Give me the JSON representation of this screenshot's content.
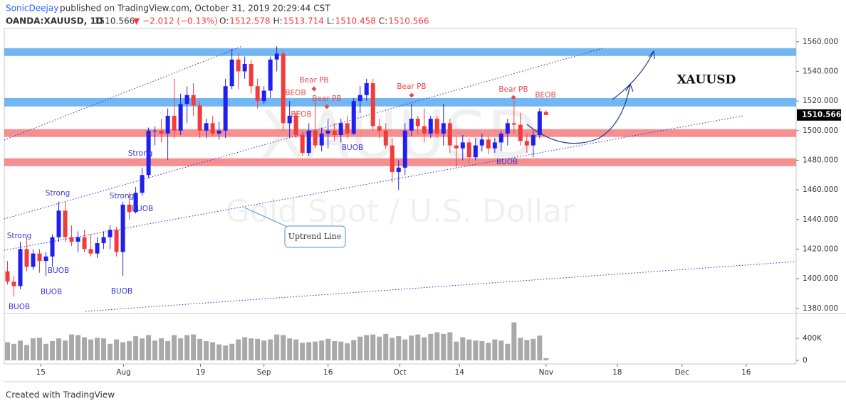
{
  "header": {
    "author": "SonicDeejay",
    "published": "published on TradingView.com, October 31, 2019 20:29:44 CST",
    "symbol": "OANDA:XAUUSD, 1D",
    "price": "1510.566",
    "change": "▼ −2.012 (−0.13%)",
    "ohlc_labels": [
      "O:",
      "H:",
      "L:",
      "C:"
    ],
    "ohlc_values": [
      "1512.578",
      "1513.714",
      "1510.458",
      "1510.566"
    ]
  },
  "footer": "Created with TradingView",
  "chart_data": {
    "type": "candlestick",
    "watermark": [
      "XAUUSD",
      "Gold Spot / U.S. Dollar"
    ],
    "up_color": "#1f1fee",
    "down_color": "#f23c3c",
    "volume_color": "#a9a9a9",
    "open": [
      1405,
      1398,
      1395,
      1420,
      1408,
      1417,
      1412,
      1415,
      1428,
      1446,
      1428,
      1425,
      1428,
      1420,
      1417,
      1424,
      1428,
      1433,
      1418,
      1450,
      1445,
      1458,
      1470,
      1500,
      1500,
      1498,
      1510,
      1500,
      1518,
      1524,
      1517,
      1500,
      1505,
      1498,
      1500,
      1530,
      1548,
      1540,
      1545,
      1530,
      1520,
      1527,
      1548,
      1552,
      1505,
      1510,
      1497,
      1485,
      1500,
      1490,
      1498,
      1500,
      1497,
      1505,
      1498,
      1520,
      1524,
      1532,
      1503,
      1500,
      1490,
      1472,
      1475,
      1500,
      1508,
      1503,
      1498,
      1508,
      1498,
      1505,
      1490,
      1488,
      1492,
      1482,
      1490,
      1494,
      1488,
      1492,
      1498,
      1505,
      1504,
      1493,
      1490,
      1497,
      1512.578
    ],
    "high": [
      1412,
      1402,
      1425,
      1428,
      1420,
      1420,
      1418,
      1430,
      1452,
      1452,
      1436,
      1432,
      1433,
      1430,
      1428,
      1432,
      1436,
      1435,
      1452,
      1458,
      1462,
      1475,
      1502,
      1503,
      1508,
      1515,
      1535,
      1525,
      1530,
      1532,
      1520,
      1508,
      1510,
      1506,
      1535,
      1555,
      1552,
      1550,
      1548,
      1535,
      1530,
      1550,
      1557,
      1554,
      1520,
      1512,
      1500,
      1505,
      1520,
      1502,
      1508,
      1505,
      1508,
      1510,
      1522,
      1530,
      1535,
      1535,
      1508,
      1505,
      1495,
      1480,
      1505,
      1518,
      1510,
      1515,
      1510,
      1510,
      1518,
      1508,
      1496,
      1497,
      1495,
      1495,
      1498,
      1496,
      1495,
      1500,
      1508,
      1520,
      1512,
      1498,
      1500,
      1515,
      1513.714
    ],
    "low": [
      1396,
      1388,
      1393,
      1405,
      1406,
      1404,
      1402,
      1408,
      1425,
      1425,
      1422,
      1418,
      1418,
      1415,
      1414,
      1420,
      1420,
      1415,
      1402,
      1440,
      1444,
      1456,
      1468,
      1490,
      1492,
      1480,
      1495,
      1497,
      1505,
      1510,
      1495,
      1495,
      1496,
      1494,
      1495,
      1528,
      1528,
      1535,
      1525,
      1515,
      1518,
      1522,
      1540,
      1500,
      1495,
      1495,
      1483,
      1483,
      1488,
      1486,
      1488,
      1493,
      1492,
      1495,
      1497,
      1512,
      1520,
      1500,
      1495,
      1488,
      1465,
      1460,
      1470,
      1496,
      1498,
      1492,
      1495,
      1495,
      1490,
      1485,
      1475,
      1480,
      1478,
      1480,
      1486,
      1484,
      1485,
      1486,
      1490,
      1498,
      1490,
      1485,
      1482,
      1495,
      1510.458
    ],
    "close": [
      1398,
      1395,
      1420,
      1408,
      1417,
      1412,
      1415,
      1428,
      1446,
      1428,
      1425,
      1428,
      1420,
      1417,
      1424,
      1428,
      1433,
      1418,
      1450,
      1445,
      1458,
      1470,
      1500,
      1500,
      1498,
      1510,
      1500,
      1518,
      1524,
      1517,
      1500,
      1505,
      1498,
      1500,
      1530,
      1548,
      1540,
      1545,
      1530,
      1520,
      1527,
      1548,
      1552,
      1505,
      1510,
      1497,
      1485,
      1500,
      1490,
      1498,
      1500,
      1497,
      1505,
      1498,
      1520,
      1524,
      1532,
      1503,
      1500,
      1490,
      1472,
      1475,
      1500,
      1508,
      1503,
      1498,
      1508,
      1498,
      1505,
      1490,
      1488,
      1492,
      1482,
      1490,
      1494,
      1488,
      1492,
      1498,
      1505,
      1504,
      1493,
      1490,
      1497,
      1513,
      1510.566
    ],
    "volume": [
      330000,
      300000,
      360000,
      280000,
      400000,
      410000,
      300000,
      350000,
      400000,
      360000,
      470000,
      460000,
      420000,
      380000,
      410000,
      400000,
      300000,
      380000,
      330000,
      350000,
      440000,
      400000,
      460000,
      360000,
      400000,
      350000,
      460000,
      400000,
      460000,
      470000,
      390000,
      350000,
      330000,
      290000,
      270000,
      300000,
      380000,
      420000,
      400000,
      390000,
      360000,
      380000,
      470000,
      460000,
      400000,
      380000,
      320000,
      330000,
      340000,
      360000,
      390000,
      350000,
      340000,
      310000,
      370000,
      430000,
      460000,
      470000,
      430000,
      480000,
      410000,
      440000,
      380000,
      450000,
      470000,
      420000,
      480000,
      510000,
      480000,
      510000,
      340000,
      420000,
      380000,
      360000,
      350000,
      320000,
      380000,
      360000,
      300000,
      690000,
      410000,
      370000,
      390000,
      450000,
      40000
    ],
    "xlim": [
      -0.5,
      123
    ],
    "xticks": [
      {
        "value": 5.2,
        "label": "15"
      },
      {
        "value": 18.1,
        "label": "Aug"
      },
      {
        "value": 30.1,
        "label": "19"
      },
      {
        "value": 40,
        "label": "Sep"
      },
      {
        "value": 50,
        "label": "16"
      },
      {
        "value": 61.2,
        "label": "Oct"
      },
      {
        "value": 70.5,
        "label": "14"
      },
      {
        "value": 84,
        "label": "Nov"
      },
      {
        "value": 95.1,
        "label": "18"
      },
      {
        "value": 105.2,
        "label": "Dec"
      },
      {
        "value": 115.2,
        "label": "16"
      }
    ],
    "ylim": [
      1377,
      1569
    ],
    "yticks": [
      {
        "value": 1380,
        "label": "1380.000"
      },
      {
        "value": 1400,
        "label": "1400.000"
      },
      {
        "value": 1420,
        "label": "1420.000"
      },
      {
        "value": 1440,
        "label": "1440.000"
      },
      {
        "value": 1460,
        "label": "1460.000"
      },
      {
        "value": 1480,
        "label": "1480.000"
      },
      {
        "value": 1500,
        "label": "1500.000"
      },
      {
        "value": 1520,
        "label": "1520.000"
      },
      {
        "value": 1540,
        "label": "1540.000"
      },
      {
        "value": 1560,
        "label": "1560.000"
      }
    ],
    "volume_ylim": [
      0,
      800000
    ],
    "volume_ticks": [
      {
        "value": 0,
        "label": "0"
      },
      {
        "value": 400000,
        "label": "400K"
      }
    ],
    "zones": [
      {
        "from": 1550.4,
        "to": 1555.7,
        "color": "#5aaaf0"
      },
      {
        "from": 1516.3,
        "to": 1522,
        "color": "#5aaaf0"
      },
      {
        "from": 1495.7,
        "to": 1501,
        "color": "#f47c7c"
      },
      {
        "from": 1476,
        "to": 1481.3,
        "color": "#f47c7c"
      }
    ],
    "annotations": [
      "Strong",
      "BUOB",
      "Strong",
      "BUOB",
      "BUOB",
      "Strong",
      "BUOB",
      "BUOB",
      "Strong",
      "BUOB",
      "BUOB",
      "Bear PB",
      "Bear PB",
      "Bear PB",
      "Bear PB",
      "BEOB",
      "BEOB",
      "BEOB"
    ],
    "label": "XAUUSD",
    "callout": "Uptrend Line"
  }
}
